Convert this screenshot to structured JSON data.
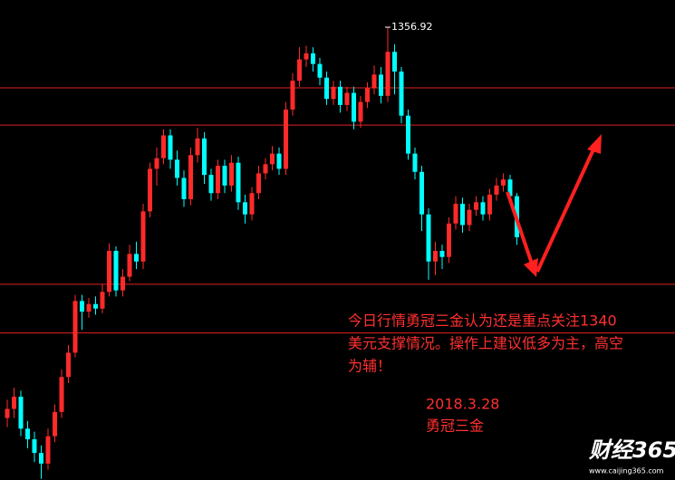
{
  "chart_data": {
    "type": "candlestick",
    "up_color": "#ff2a2a",
    "down_color": "#00ffff",
    "level_color": "#e02020",
    "ylim": [
      1327.12,
      1358.71
    ],
    "levels": [
      1352.93,
      1350.48,
      1340.0,
      1336.8
    ],
    "open": [
      1331.2,
      1331.8,
      1332.6,
      1330.5,
      1329.8,
      1328.9,
      1328.2,
      1330.0,
      1331.6,
      1333.9,
      1335.5,
      1338.9,
      1338.2,
      1338.7,
      1338.4,
      1339.5,
      1342.2,
      1339.6,
      1340.5,
      1342.0,
      1341.5,
      1344.8,
      1347.6,
      1348.3,
      1349.8,
      1348.2,
      1347.0,
      1345.6,
      1348.5,
      1349.6,
      1347.2,
      1346.0,
      1347.8,
      1346.5,
      1348.0,
      1345.4,
      1344.6,
      1346.0,
      1347.3,
      1347.9,
      1348.6,
      1347.6,
      1351.5,
      1353.4,
      1354.8,
      1355.2,
      1354.5,
      1353.6,
      1352.2,
      1353.0,
      1351.8,
      1352.6,
      1350.7,
      1352.0,
      1352.9,
      1353.8,
      1352.4,
      1355.3,
      1354.0,
      1351.1,
      1348.6,
      1347.4,
      1344.6,
      1341.5,
      1342.2,
      1341.8,
      1344.0,
      1345.3,
      1343.9,
      1344.9,
      1345.4,
      1344.6,
      1345.9,
      1346.5,
      1346.9,
      1345.8
    ],
    "high": [
      1332.4,
      1333.2,
      1333.0,
      1331.0,
      1330.3,
      1329.4,
      1330.5,
      1332.1,
      1334.4,
      1336.0,
      1339.3,
      1339.3,
      1339.1,
      1339.2,
      1340.0,
      1342.7,
      1342.5,
      1341.0,
      1342.6,
      1342.8,
      1345.3,
      1348.0,
      1349.0,
      1350.2,
      1350.2,
      1348.8,
      1347.5,
      1349.0,
      1350.3,
      1350.0,
      1347.6,
      1348.2,
      1348.2,
      1348.5,
      1348.4,
      1345.9,
      1346.4,
      1347.8,
      1348.3,
      1349.1,
      1349.0,
      1352.0,
      1353.9,
      1355.6,
      1355.7,
      1355.6,
      1354.9,
      1354.0,
      1353.4,
      1353.4,
      1353.0,
      1353.0,
      1352.4,
      1353.3,
      1354.4,
      1354.3,
      1356.92,
      1355.8,
      1354.3,
      1351.5,
      1349.0,
      1347.8,
      1345.0,
      1342.8,
      1342.6,
      1344.4,
      1345.8,
      1345.7,
      1345.3,
      1345.8,
      1345.8,
      1346.3,
      1347.0,
      1347.3,
      1347.2,
      1346.0
    ],
    "low": [
      1330.6,
      1331.2,
      1330.0,
      1329.2,
      1328.3,
      1327.2,
      1327.8,
      1329.6,
      1331.2,
      1333.5,
      1335.2,
      1337.0,
      1337.8,
      1338.0,
      1338.1,
      1339.2,
      1339.2,
      1339.2,
      1340.2,
      1341.0,
      1341.0,
      1344.4,
      1346.5,
      1347.9,
      1347.6,
      1346.5,
      1345.1,
      1345.2,
      1348.0,
      1346.6,
      1345.5,
      1345.6,
      1346.0,
      1346.1,
      1344.9,
      1344.0,
      1344.2,
      1345.6,
      1346.9,
      1347.5,
      1347.2,
      1347.2,
      1351.1,
      1353.0,
      1354.3,
      1354.0,
      1353.1,
      1351.8,
      1351.8,
      1351.3,
      1351.4,
      1350.2,
      1350.3,
      1351.6,
      1352.5,
      1351.9,
      1352.0,
      1352.5,
      1350.6,
      1348.2,
      1346.9,
      1343.5,
      1340.3,
      1340.6,
      1341.0,
      1341.4,
      1343.6,
      1343.4,
      1343.5,
      1344.5,
      1344.2,
      1344.2,
      1345.5,
      1346.1,
      1345.4,
      1342.6
    ],
    "close": [
      1331.8,
      1332.6,
      1330.5,
      1329.8,
      1328.9,
      1328.2,
      1330.0,
      1331.6,
      1333.9,
      1335.5,
      1338.9,
      1338.2,
      1338.7,
      1338.4,
      1339.5,
      1342.2,
      1339.6,
      1340.5,
      1342.0,
      1341.5,
      1344.8,
      1347.6,
      1348.3,
      1349.8,
      1348.2,
      1347.0,
      1345.6,
      1348.5,
      1349.6,
      1347.2,
      1346.0,
      1347.8,
      1346.5,
      1348.0,
      1345.4,
      1344.6,
      1346.0,
      1347.3,
      1347.9,
      1348.6,
      1347.6,
      1351.5,
      1353.4,
      1354.8,
      1355.2,
      1354.5,
      1353.6,
      1352.2,
      1353.0,
      1351.8,
      1352.6,
      1350.7,
      1352.0,
      1352.9,
      1353.8,
      1352.4,
      1355.3,
      1354.0,
      1351.1,
      1348.6,
      1347.4,
      1344.6,
      1341.5,
      1342.2,
      1341.8,
      1344.0,
      1345.3,
      1343.9,
      1344.9,
      1345.4,
      1344.6,
      1345.9,
      1346.5,
      1346.9,
      1345.8,
      1343.1
    ],
    "annotation_lines": [
      "今日行情勇冠三金认为还是重点关注1340",
      "美元支撑情况。操作上建议低多为主，高空",
      "为辅！"
    ],
    "date": "2018.3.28",
    "author": "勇冠三金",
    "logo": "财经365",
    "logo_url": "www.caijing365.com"
  }
}
